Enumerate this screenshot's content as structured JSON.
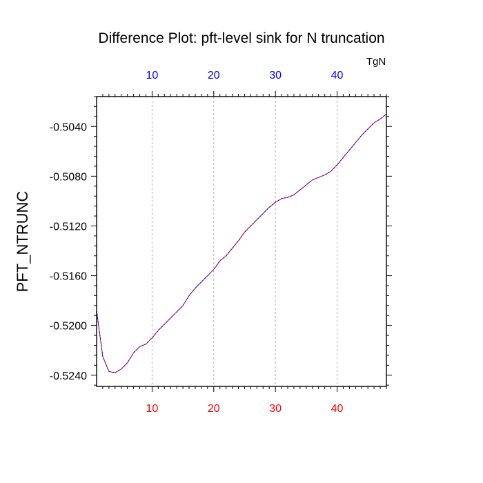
{
  "chart_data": {
    "type": "line",
    "title": "Difference Plot: pft-level sink for N truncation",
    "ylabel": "PFT_NTRUNC",
    "top_axis_label": "TgN",
    "xlim": [
      1,
      48
    ],
    "ylim": [
      -0.5249,
      -0.5016
    ],
    "x_ticks": [
      10,
      20,
      30,
      40
    ],
    "x_tick_labels": [
      "10",
      "20",
      "30",
      "40"
    ],
    "top_ticks": [
      10,
      20,
      30,
      40
    ],
    "top_tick_labels": [
      "10",
      "20",
      "30",
      "40"
    ],
    "y_ticks": [
      -0.524,
      -0.52,
      -0.516,
      -0.512,
      -0.508,
      -0.504
    ],
    "y_tick_labels": [
      "-0.5240",
      "-0.5200",
      "-0.5160",
      "-0.5120",
      "-0.5080",
      "-0.5040"
    ],
    "vertical_grid": true,
    "colors": {
      "bottom_ticks": "#ff0000",
      "top_ticks": "#0000ff",
      "line_solid": "#ff0000",
      "line_dashed": "#0000ff",
      "grid": "#b0b0b0",
      "axis": "#000000"
    },
    "series": [
      {
        "x": [
          1,
          2,
          3,
          4,
          5,
          6,
          7,
          8,
          9,
          10,
          11,
          12,
          13,
          14,
          15,
          16,
          17,
          18,
          19,
          20,
          21,
          22,
          23,
          24,
          25,
          26,
          27,
          28,
          29,
          30,
          31,
          32,
          33,
          34,
          35,
          36,
          37,
          38,
          39,
          40,
          41,
          42,
          43,
          44,
          45,
          46,
          47,
          48
        ],
        "values": [
          -0.5188,
          -0.5225,
          -0.5237,
          -0.5238,
          -0.5235,
          -0.523,
          -0.5222,
          -0.5217,
          -0.5215,
          -0.521,
          -0.5204,
          -0.5199,
          -0.5194,
          -0.5189,
          -0.5184,
          -0.5176,
          -0.517,
          -0.5165,
          -0.516,
          -0.5155,
          -0.5148,
          -0.5144,
          -0.5138,
          -0.5132,
          -0.5125,
          -0.512,
          -0.5115,
          -0.511,
          -0.5105,
          -0.5101,
          -0.5098,
          -0.5097,
          -0.5095,
          -0.5091,
          -0.5087,
          -0.5083,
          -0.5081,
          -0.5079,
          -0.5076,
          -0.5071,
          -0.5065,
          -0.5059,
          -0.5053,
          -0.5047,
          -0.5042,
          -0.5037,
          -0.5034,
          -0.503
        ]
      }
    ]
  }
}
